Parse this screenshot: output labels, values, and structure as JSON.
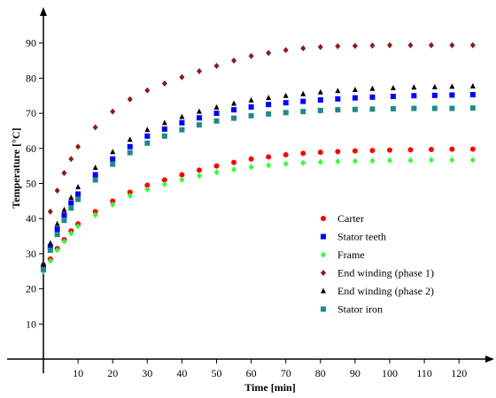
{
  "chart_data": {
    "type": "scatter",
    "title": "",
    "xlabel": "Time [min]",
    "ylabel": "Temperature [°C]",
    "xlim": [
      0,
      125
    ],
    "ylim": [
      0,
      100
    ],
    "xticks": [
      10,
      20,
      30,
      40,
      50,
      60,
      70,
      80,
      90,
      100,
      110,
      120
    ],
    "yticks": [
      10,
      20,
      30,
      40,
      50,
      60,
      70,
      80,
      90
    ],
    "grid": false,
    "legend_position": "center-right",
    "series": [
      {
        "name": "Carter",
        "color": "#ff0000",
        "marker": "circle",
        "x": [
          0,
          2,
          4,
          6,
          8,
          10,
          15,
          20,
          25,
          30,
          35,
          40,
          45,
          50,
          55,
          60,
          65,
          70,
          75,
          80,
          85,
          90,
          95,
          100,
          106,
          112,
          118,
          124
        ],
        "y": [
          25.5,
          28.5,
          31.5,
          34,
          36.5,
          38.5,
          42,
          45,
          47.5,
          49.5,
          51,
          52.5,
          53.8,
          55,
          56,
          57,
          57.6,
          58.2,
          58.6,
          58.9,
          59.1,
          59.3,
          59.4,
          59.5,
          59.6,
          59.7,
          59.8,
          59.8
        ]
      },
      {
        "name": "Stator teeth",
        "color": "#0000ff",
        "marker": "square",
        "x": [
          0,
          2,
          4,
          6,
          8,
          10,
          15,
          20,
          25,
          30,
          35,
          40,
          45,
          50,
          55,
          60,
          65,
          70,
          75,
          80,
          85,
          90,
          95,
          101,
          107,
          113,
          118,
          124
        ],
        "y": [
          26,
          32,
          37,
          41,
          44.5,
          47,
          52.5,
          57,
          60.5,
          63.5,
          65.5,
          67.3,
          68.7,
          70,
          71,
          71.8,
          72.5,
          73,
          73.4,
          73.8,
          74.1,
          74.4,
          74.6,
          74.8,
          75,
          75.1,
          75.2,
          75.3
        ]
      },
      {
        "name": "Frame",
        "color": "#33ff33",
        "marker": "diamond",
        "x": [
          0,
          2,
          4,
          6,
          8,
          10,
          15,
          20,
          25,
          30,
          35,
          40,
          45,
          50,
          55,
          60,
          65,
          70,
          75,
          80,
          85,
          90,
          95,
          100,
          106,
          112,
          118,
          124
        ],
        "y": [
          25,
          28,
          31,
          33.5,
          35.8,
          37.8,
          41,
          44,
          46.5,
          48.3,
          49.8,
          51,
          52.2,
          53.2,
          54,
          54.7,
          55.2,
          55.6,
          55.9,
          56.1,
          56.3,
          56.4,
          56.5,
          56.6,
          56.6,
          56.7,
          56.7,
          56.7
        ]
      },
      {
        "name": "End winding (phase 1)",
        "color": "#8b1a1a",
        "marker": "diamond",
        "x": [
          0,
          2,
          4,
          6,
          8,
          10,
          15,
          20,
          25,
          30,
          35,
          40,
          45,
          50,
          55,
          60,
          65,
          70,
          75,
          80,
          85,
          90,
          95,
          100,
          106,
          112,
          118,
          124
        ],
        "y": [
          27,
          42,
          48,
          53,
          57,
          60.5,
          66,
          70.5,
          74,
          76.5,
          78.5,
          80.3,
          82,
          83.5,
          85,
          86.3,
          87.2,
          88,
          88.5,
          88.9,
          89.1,
          89.2,
          89.3,
          89.4,
          89.4,
          89.4,
          89.4,
          89.4
        ]
      },
      {
        "name": "End winding (phase 2)",
        "color": "#000000",
        "marker": "triangle",
        "x": [
          0,
          2,
          4,
          6,
          8,
          10,
          15,
          20,
          25,
          30,
          35,
          40,
          45,
          50,
          55,
          60,
          65,
          70,
          75,
          80,
          85,
          90,
          95,
          101,
          107,
          113,
          118,
          124
        ],
        "y": [
          27,
          33,
          38.5,
          42.5,
          46,
          49,
          54.5,
          59,
          62.5,
          65.3,
          67.3,
          69,
          70.5,
          71.7,
          72.8,
          73.7,
          74.4,
          75,
          75.5,
          76,
          76.4,
          76.7,
          77,
          77.2,
          77.4,
          77.5,
          77.6,
          77.7
        ]
      },
      {
        "name": "Stator iron",
        "color": "#1f8a8a",
        "marker": "square",
        "x": [
          0,
          2,
          4,
          6,
          8,
          10,
          15,
          20,
          25,
          30,
          35,
          40,
          45,
          50,
          55,
          60,
          65,
          70,
          75,
          80,
          85,
          90,
          95,
          101,
          107,
          113,
          118,
          124
        ],
        "y": [
          25.5,
          31,
          35.5,
          39.5,
          43,
          45.5,
          51,
          55.5,
          58.8,
          61.5,
          63.5,
          65.3,
          66.7,
          67.8,
          68.6,
          69.3,
          69.8,
          70.2,
          70.5,
          70.8,
          71,
          71.1,
          71.2,
          71.3,
          71.4,
          71.4,
          71.4,
          71.5
        ]
      }
    ]
  }
}
